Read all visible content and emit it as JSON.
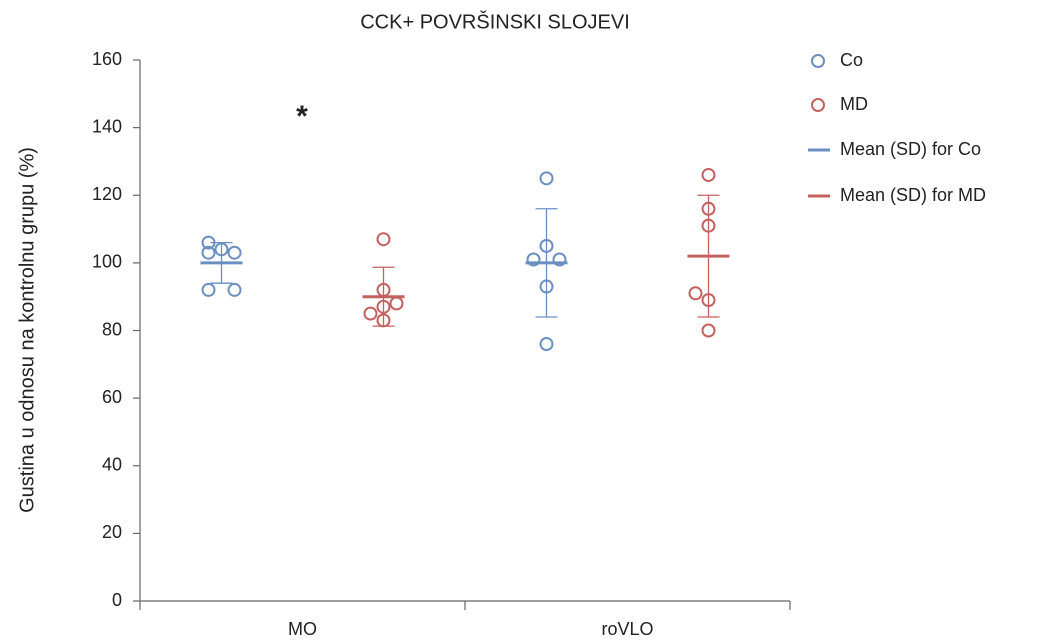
{
  "chart_data": {
    "type": "dot",
    "title": "CCK+ POVRŠINSKI SLOJEVI",
    "y_label": "Gustina u odnosu na kontrolnu grupu (%)",
    "annotation": "*",
    "categories": [
      "MO",
      "roVLO"
    ],
    "ylim": [
      0,
      160
    ],
    "yticks": [
      0,
      20,
      40,
      60,
      80,
      100,
      120,
      140,
      160
    ],
    "series": [
      {
        "name": "Co",
        "mean_label": "Mean (SD) for Co",
        "color": "#6b8fc0",
        "values": [
          [
            106,
            104,
            103,
            103,
            92,
            92
          ],
          [
            125,
            105,
            101,
            101,
            93,
            76
          ]
        ],
        "mean": [
          100,
          100
        ],
        "sd": [
          6,
          16
        ]
      },
      {
        "name": "MD",
        "mean_label": "Mean (SD) for MD",
        "color": "#c4615f",
        "values": [
          [
            107,
            92,
            88,
            87,
            85,
            83
          ],
          [
            126,
            116,
            111,
            91,
            89,
            80
          ]
        ],
        "mean": [
          90,
          102
        ],
        "sd": [
          8.7,
          18
        ]
      }
    ]
  }
}
